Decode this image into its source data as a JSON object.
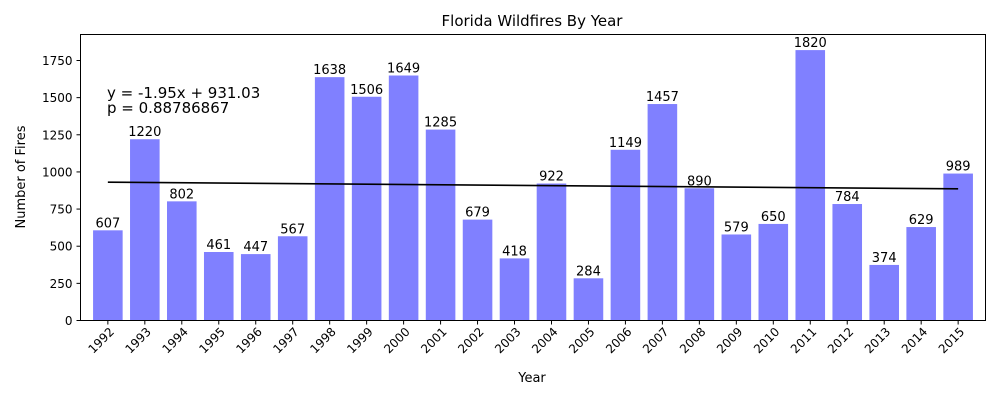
{
  "chart_data": {
    "type": "bar",
    "title": "Florida Wildfires By Year",
    "xlabel": "Year",
    "ylabel": "Number of Fires",
    "categories": [
      "1992",
      "1993",
      "1994",
      "1995",
      "1996",
      "1997",
      "1998",
      "1999",
      "2000",
      "2001",
      "2002",
      "2003",
      "2004",
      "2005",
      "2006",
      "2007",
      "2008",
      "2009",
      "2010",
      "2011",
      "2012",
      "2013",
      "2014",
      "2015"
    ],
    "values": [
      607,
      1220,
      802,
      461,
      447,
      567,
      1638,
      1506,
      1649,
      1285,
      679,
      418,
      922,
      284,
      1149,
      1457,
      890,
      579,
      650,
      1820,
      784,
      374,
      629,
      989
    ],
    "ylim": [
      0,
      1925
    ],
    "yticks": [
      0,
      250,
      500,
      750,
      1000,
      1250,
      1500,
      1750
    ],
    "grid": false,
    "bar_color": "#8080ff",
    "trendline": {
      "slope": -1.95,
      "intercept": 931.03,
      "color": "#000000"
    },
    "annotations": [
      "y = -1.95x + 931.03",
      "p = 0.88786867"
    ]
  }
}
